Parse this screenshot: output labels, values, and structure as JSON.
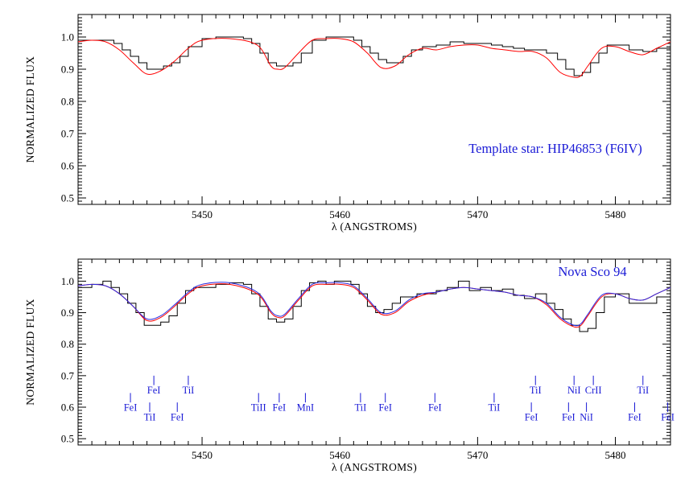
{
  "chart_data": [
    {
      "type": "line",
      "annotation": "Template star:  HIP46853 (F6IV)",
      "xlabel": "λ (ANGSTROMS)",
      "ylabel": "NORMALIZED FLUX",
      "xlim": [
        5441,
        5484
      ],
      "ylim": [
        0.48,
        1.07
      ],
      "xticks": [
        5450,
        5460,
        5470,
        5480
      ],
      "yticks": [
        0.5,
        0.6,
        0.7,
        0.8,
        0.9,
        1.0
      ],
      "colors": {
        "observed": "#000000",
        "model": "#ff0000"
      },
      "series": [
        {
          "style": "step",
          "color": "#000000",
          "x": [
            5441,
            5442,
            5443,
            5443.6,
            5444.2,
            5444.8,
            5445.4,
            5446,
            5446.6,
            5447.2,
            5447.8,
            5448.4,
            5449,
            5450,
            5451,
            5452,
            5453,
            5453.6,
            5454.2,
            5454.8,
            5455.4,
            5456,
            5456.6,
            5457.2,
            5458,
            5459,
            5460,
            5461,
            5461.6,
            5462.2,
            5462.8,
            5463.4,
            5464,
            5464.6,
            5465.2,
            5466,
            5467,
            5468,
            5469,
            5470,
            5471,
            5471.8,
            5472.6,
            5473.4,
            5474.2,
            5475,
            5475.8,
            5476.4,
            5477,
            5477.6,
            5478.2,
            5478.8,
            5479.4,
            5480,
            5481,
            5482,
            5483,
            5484
          ],
          "y": [
            0.99,
            0.99,
            0.99,
            0.98,
            0.96,
            0.94,
            0.92,
            0.9,
            0.9,
            0.91,
            0.92,
            0.94,
            0.97,
            0.995,
            1.0,
            1.0,
            0.995,
            0.98,
            0.95,
            0.92,
            0.91,
            0.91,
            0.92,
            0.95,
            0.99,
            1.0,
            1.0,
            0.99,
            0.97,
            0.95,
            0.93,
            0.92,
            0.92,
            0.94,
            0.96,
            0.97,
            0.975,
            0.985,
            0.98,
            0.98,
            0.975,
            0.97,
            0.965,
            0.96,
            0.96,
            0.95,
            0.93,
            0.9,
            0.88,
            0.89,
            0.92,
            0.95,
            0.975,
            0.975,
            0.96,
            0.955,
            0.965,
            0.98
          ]
        },
        {
          "style": "smooth",
          "color": "#ff0000",
          "x": [
            5441,
            5442,
            5443,
            5444,
            5445,
            5446,
            5447,
            5448,
            5449,
            5450,
            5452,
            5454,
            5455,
            5455.5,
            5456,
            5457,
            5458,
            5459,
            5460,
            5461,
            5462,
            5463,
            5464,
            5465,
            5466,
            5467,
            5468,
            5469,
            5470,
            5471,
            5472,
            5473,
            5474,
            5475,
            5476,
            5477,
            5477.5,
            5478,
            5479,
            5480,
            5481,
            5482,
            5483,
            5484
          ],
          "y": [
            0.985,
            0.99,
            0.985,
            0.96,
            0.92,
            0.885,
            0.895,
            0.925,
            0.965,
            0.99,
            0.995,
            0.975,
            0.91,
            0.9,
            0.905,
            0.95,
            0.99,
            0.995,
            0.995,
            0.985,
            0.95,
            0.905,
            0.91,
            0.945,
            0.965,
            0.96,
            0.97,
            0.975,
            0.975,
            0.965,
            0.96,
            0.955,
            0.955,
            0.935,
            0.89,
            0.875,
            0.88,
            0.91,
            0.965,
            0.97,
            0.955,
            0.945,
            0.965,
            0.985
          ]
        }
      ]
    },
    {
      "type": "line",
      "annotation": "Nova Sco 94",
      "xlabel": "λ (ANGSTROMS)",
      "ylabel": "NORMALIZED FLUX",
      "xlim": [
        5441,
        5484
      ],
      "ylim": [
        0.48,
        1.07
      ],
      "xticks": [
        5450,
        5460,
        5470,
        5480
      ],
      "yticks": [
        0.5,
        0.6,
        0.7,
        0.8,
        0.9,
        1.0
      ],
      "colors": {
        "observed": "#000000",
        "model": "#ff0000",
        "fit": "#2a2ae0",
        "lines": "#1a1ad6"
      },
      "series": [
        {
          "style": "step",
          "color": "#000000",
          "x": [
            5441,
            5442,
            5442.8,
            5443.4,
            5444,
            5444.6,
            5445.2,
            5445.8,
            5446.4,
            5447,
            5447.6,
            5448.2,
            5448.8,
            5449.4,
            5450,
            5451,
            5452,
            5453,
            5453.6,
            5454.2,
            5454.8,
            5455.4,
            5456,
            5456.6,
            5457.2,
            5457.8,
            5458.4,
            5459,
            5459.6,
            5460.2,
            5460.8,
            5461.4,
            5462,
            5462.6,
            5463.2,
            5463.8,
            5464.4,
            5465,
            5465.6,
            5466.2,
            5467,
            5467.8,
            5468.6,
            5469.4,
            5470.2,
            5471,
            5471.8,
            5472.6,
            5473.4,
            5474.2,
            5475,
            5475.6,
            5476.2,
            5476.8,
            5477.4,
            5478,
            5478.6,
            5479.2,
            5480,
            5481,
            5482,
            5483,
            5484
          ],
          "y": [
            0.98,
            0.99,
            1.0,
            0.98,
            0.96,
            0.93,
            0.9,
            0.86,
            0.86,
            0.87,
            0.89,
            0.93,
            0.97,
            0.98,
            0.98,
            0.99,
            0.995,
            0.99,
            0.96,
            0.92,
            0.88,
            0.87,
            0.88,
            0.92,
            0.97,
            0.995,
            1.0,
            0.99,
            1.0,
            1.0,
            0.99,
            0.96,
            0.92,
            0.9,
            0.91,
            0.93,
            0.95,
            0.95,
            0.96,
            0.96,
            0.97,
            0.98,
            1.0,
            0.97,
            0.98,
            0.97,
            0.975,
            0.955,
            0.945,
            0.96,
            0.93,
            0.91,
            0.88,
            0.86,
            0.84,
            0.85,
            0.9,
            0.95,
            0.96,
            0.93,
            0.93,
            0.95,
            0.97
          ]
        },
        {
          "style": "smooth",
          "color": "#ff0000",
          "x": [
            5441,
            5442,
            5443,
            5444,
            5445,
            5446,
            5447,
            5448,
            5449,
            5450,
            5452,
            5454,
            5455,
            5455.5,
            5456,
            5457,
            5458,
            5459,
            5460,
            5461,
            5462,
            5463,
            5464,
            5465,
            5466,
            5467,
            5468,
            5469,
            5470,
            5471,
            5472,
            5473,
            5474,
            5475,
            5476,
            5477,
            5477.5,
            5478,
            5479,
            5480,
            5481,
            5482,
            5483,
            5484
          ],
          "y": [
            0.985,
            0.99,
            0.985,
            0.96,
            0.92,
            0.875,
            0.885,
            0.92,
            0.96,
            0.985,
            0.99,
            0.96,
            0.9,
            0.885,
            0.89,
            0.94,
            0.985,
            0.99,
            0.99,
            0.98,
            0.94,
            0.895,
            0.9,
            0.935,
            0.955,
            0.965,
            0.975,
            0.98,
            0.975,
            0.97,
            0.965,
            0.955,
            0.95,
            0.925,
            0.88,
            0.855,
            0.86,
            0.89,
            0.95,
            0.96,
            0.945,
            0.94,
            0.96,
            0.98
          ]
        },
        {
          "style": "smooth",
          "color": "#2a2ae0",
          "x": [
            5441,
            5442,
            5443,
            5444,
            5445,
            5446,
            5447,
            5448,
            5449,
            5450,
            5452,
            5454,
            5455,
            5455.5,
            5456,
            5457,
            5458,
            5459,
            5460,
            5461,
            5462,
            5463,
            5464,
            5465,
            5466,
            5467,
            5468,
            5469,
            5470,
            5471,
            5472,
            5473,
            5474,
            5475,
            5476,
            5477,
            5477.5,
            5478,
            5479,
            5480,
            5481,
            5482,
            5483,
            5484
          ],
          "y": [
            0.985,
            0.99,
            0.985,
            0.96,
            0.92,
            0.88,
            0.89,
            0.925,
            0.965,
            0.99,
            0.995,
            0.965,
            0.905,
            0.89,
            0.895,
            0.945,
            0.99,
            0.995,
            0.995,
            0.985,
            0.945,
            0.9,
            0.905,
            0.94,
            0.96,
            0.965,
            0.975,
            0.98,
            0.975,
            0.97,
            0.965,
            0.955,
            0.95,
            0.93,
            0.885,
            0.86,
            0.865,
            0.895,
            0.955,
            0.96,
            0.945,
            0.94,
            0.96,
            0.98
          ]
        }
      ],
      "line_ids": [
        {
          "label": "FeI",
          "x": 5444.8,
          "y": 0.6,
          "row": "low"
        },
        {
          "label": "FeI",
          "x": 5446.5,
          "y": 0.655,
          "row": "high"
        },
        {
          "label": "TiI",
          "x": 5446.2,
          "y": 0.57,
          "row": "bottom"
        },
        {
          "label": "TiI",
          "x": 5449,
          "y": 0.655,
          "row": "high"
        },
        {
          "label": "FeI",
          "x": 5448.2,
          "y": 0.57,
          "row": "bottom"
        },
        {
          "label": "TiII",
          "x": 5454.1,
          "y": 0.6,
          "row": "low"
        },
        {
          "label": "FeI",
          "x": 5455.6,
          "y": 0.6,
          "row": "low"
        },
        {
          "label": "MnI",
          "x": 5457.5,
          "y": 0.6,
          "row": "low"
        },
        {
          "label": "TiI",
          "x": 5461.5,
          "y": 0.6,
          "row": "low"
        },
        {
          "label": "FeI",
          "x": 5463.3,
          "y": 0.6,
          "row": "low"
        },
        {
          "label": "FeI",
          "x": 5466.9,
          "y": 0.6,
          "row": "low"
        },
        {
          "label": "TiI",
          "x": 5471.2,
          "y": 0.6,
          "row": "low"
        },
        {
          "label": "TiI",
          "x": 5474.2,
          "y": 0.655,
          "row": "high"
        },
        {
          "label": "FeI",
          "x": 5473.9,
          "y": 0.57,
          "row": "bottom"
        },
        {
          "label": "NiI",
          "x": 5477,
          "y": 0.655,
          "row": "high"
        },
        {
          "label": "CrII",
          "x": 5478.4,
          "y": 0.655,
          "row": "high"
        },
        {
          "label": "FeI",
          "x": 5476.6,
          "y": 0.57,
          "row": "bottom"
        },
        {
          "label": "NiI",
          "x": 5477.9,
          "y": 0.57,
          "row": "bottom"
        },
        {
          "label": "TiI",
          "x": 5482,
          "y": 0.655,
          "row": "high"
        },
        {
          "label": "FeI",
          "x": 5481.4,
          "y": 0.57,
          "row": "bottom"
        },
        {
          "label": "FeI",
          "x": 5483.8,
          "y": 0.57,
          "row": "bottom"
        }
      ]
    }
  ]
}
